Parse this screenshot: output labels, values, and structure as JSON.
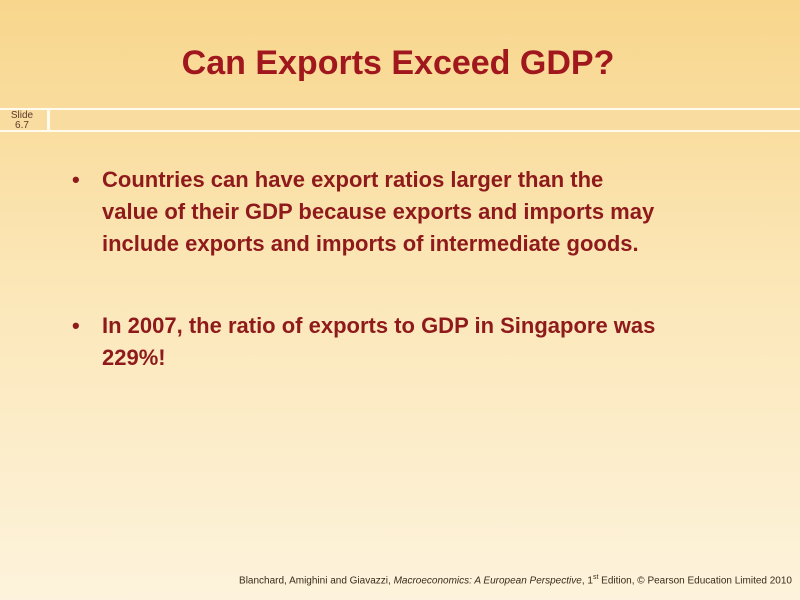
{
  "slide_label": [
    "Slide",
    "6.7"
  ],
  "title": "Can Exports Exceed GDP?",
  "bullets": [
    "Countries can have export ratios larger than the value of their GDP because exports and imports may include exports and imports of intermediate goods.",
    "In 2007, the ratio of exports to GDP in Singapore was 229%!"
  ],
  "footer": {
    "authors": "Blanchard, Amighini and Giavazzi, ",
    "book": "Macroeconomics: A European Perspective",
    "edition": ", 1",
    "edition_suffix": "st",
    "rest": " Edition, © Pearson Education Limited 2010"
  }
}
